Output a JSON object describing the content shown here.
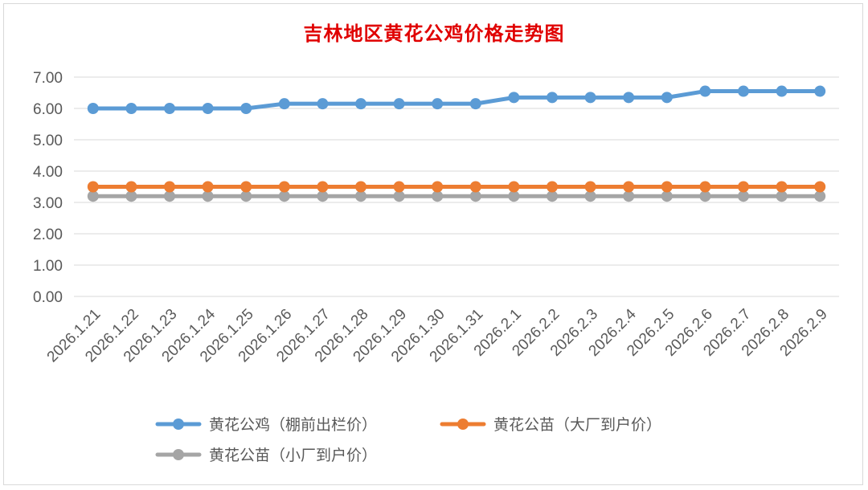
{
  "chart_data": {
    "type": "line",
    "title": "吉林地区黄花公鸡价格走势图",
    "xlabel": "",
    "ylabel": "",
    "ylim": [
      0,
      7
    ],
    "yticks": [
      "0.00",
      "1.00",
      "2.00",
      "3.00",
      "4.00",
      "5.00",
      "6.00",
      "7.00"
    ],
    "grid": true,
    "legend_position": "bottom",
    "categories": [
      "2026.1.21",
      "2026.1.22",
      "2026.1.23",
      "2026.1.24",
      "2026.1.25",
      "2026.1.26",
      "2026.1.27",
      "2026.1.28",
      "2026.1.29",
      "2026.1.30",
      "2026.1.31",
      "2026.2.1",
      "2026.2.2",
      "2026.2.3",
      "2026.2.4",
      "2026.2.5",
      "2026.2.6",
      "2026.2.7",
      "2026.2.8",
      "2026.2.9"
    ],
    "series": [
      {
        "name": "黄花公鸡（棚前出栏价）",
        "color": "#5b9bd5",
        "values": [
          6.0,
          6.0,
          6.0,
          6.0,
          6.0,
          6.15,
          6.15,
          6.15,
          6.15,
          6.15,
          6.15,
          6.35,
          6.35,
          6.35,
          6.35,
          6.35,
          6.55,
          6.55,
          6.55,
          6.55
        ]
      },
      {
        "name": "黄花公苗（大厂到户价）",
        "color": "#ed7d31",
        "values": [
          3.5,
          3.5,
          3.5,
          3.5,
          3.5,
          3.5,
          3.5,
          3.5,
          3.5,
          3.5,
          3.5,
          3.5,
          3.5,
          3.5,
          3.5,
          3.5,
          3.5,
          3.5,
          3.5,
          3.5
        ]
      },
      {
        "name": "黄花公苗（小厂到户价）",
        "color": "#a5a5a5",
        "values": [
          3.2,
          3.2,
          3.2,
          3.2,
          3.2,
          3.2,
          3.2,
          3.2,
          3.2,
          3.2,
          3.2,
          3.2,
          3.2,
          3.2,
          3.2,
          3.2,
          3.2,
          3.2,
          3.2,
          3.2
        ]
      }
    ]
  }
}
